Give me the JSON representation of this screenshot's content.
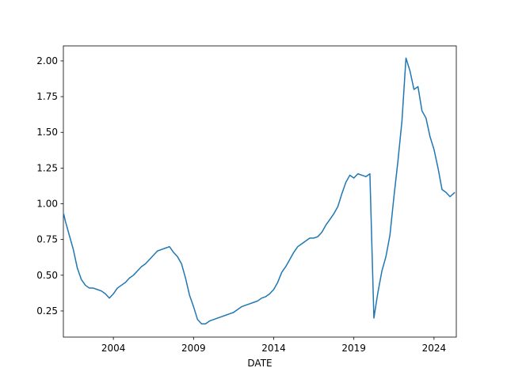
{
  "chart_data": {
    "type": "line",
    "xlabel": "DATE",
    "series": [
      {
        "color": "#1f77b4",
        "x": [
          2000.9,
          2001.0,
          2001.25,
          2001.5,
          2001.75,
          2002.0,
          2002.25,
          2002.5,
          2002.75,
          2003.0,
          2003.25,
          2003.5,
          2003.75,
          2004.0,
          2004.25,
          2004.5,
          2004.75,
          2005.0,
          2005.25,
          2005.5,
          2005.75,
          2006.0,
          2006.25,
          2006.5,
          2006.75,
          2007.0,
          2007.25,
          2007.5,
          2007.75,
          2008.0,
          2008.25,
          2008.5,
          2008.75,
          2009.0,
          2009.25,
          2009.5,
          2009.75,
          2010.0,
          2010.25,
          2010.5,
          2010.75,
          2011.0,
          2011.25,
          2011.5,
          2011.75,
          2012.0,
          2012.25,
          2012.5,
          2012.75,
          2013.0,
          2013.25,
          2013.5,
          2013.75,
          2014.0,
          2014.25,
          2014.5,
          2014.75,
          2015.0,
          2015.25,
          2015.5,
          2015.75,
          2016.0,
          2016.25,
          2016.5,
          2016.75,
          2017.0,
          2017.25,
          2017.5,
          2017.75,
          2018.0,
          2018.25,
          2018.5,
          2018.75,
          2019.0,
          2019.25,
          2019.5,
          2019.75,
          2020.0,
          2020.25,
          2020.5,
          2020.75,
          2021.0,
          2021.25,
          2021.5,
          2021.75,
          2022.0,
          2022.25,
          2022.5,
          2022.75,
          2023.0,
          2023.25,
          2023.5,
          2023.75,
          2024.0,
          2024.25,
          2024.5,
          2024.75,
          2025.0,
          2025.3
        ],
        "values": [
          0.93,
          0.88,
          0.78,
          0.68,
          0.55,
          0.47,
          0.43,
          0.41,
          0.41,
          0.4,
          0.39,
          0.37,
          0.34,
          0.37,
          0.41,
          0.43,
          0.45,
          0.48,
          0.5,
          0.53,
          0.56,
          0.58,
          0.61,
          0.64,
          0.67,
          0.68,
          0.69,
          0.7,
          0.66,
          0.63,
          0.58,
          0.48,
          0.36,
          0.28,
          0.19,
          0.16,
          0.16,
          0.18,
          0.19,
          0.2,
          0.21,
          0.22,
          0.23,
          0.24,
          0.26,
          0.28,
          0.29,
          0.3,
          0.31,
          0.32,
          0.34,
          0.35,
          0.37,
          0.4,
          0.45,
          0.52,
          0.56,
          0.61,
          0.66,
          0.7,
          0.72,
          0.74,
          0.76,
          0.76,
          0.77,
          0.8,
          0.85,
          0.89,
          0.93,
          0.98,
          1.07,
          1.15,
          1.2,
          1.18,
          1.21,
          1.2,
          1.19,
          1.21,
          0.2,
          0.38,
          0.53,
          0.63,
          0.78,
          1.05,
          1.3,
          1.58,
          2.02,
          1.93,
          1.8,
          1.82,
          1.65,
          1.6,
          1.47,
          1.38,
          1.25,
          1.1,
          1.08,
          1.05,
          1.08
        ]
      }
    ],
    "xlim": [
      2000.88,
      2025.39
    ],
    "xticks": [
      2004,
      2009,
      2014,
      2019,
      2024
    ],
    "ylim": [
      0.067,
      2.105
    ],
    "yticks": [
      {
        "value": 0.25,
        "label": "0.25"
      },
      {
        "value": 0.5,
        "label": "0.50"
      },
      {
        "value": 0.75,
        "label": "0.75"
      },
      {
        "value": 1.0,
        "label": "1.00"
      },
      {
        "value": 1.25,
        "label": "1.25"
      },
      {
        "value": 1.5,
        "label": "1.50"
      },
      {
        "value": 1.75,
        "label": "1.75"
      },
      {
        "value": 2.0,
        "label": "2.00"
      }
    ]
  }
}
